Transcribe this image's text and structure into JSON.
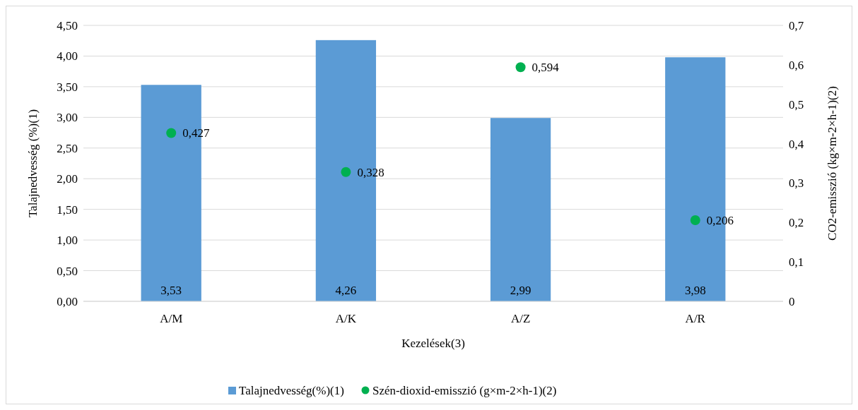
{
  "chart_data": {
    "type": "bar",
    "xlabel": "Kezelések(3)",
    "ylabel": "Talajnedvesség (%)(1)",
    "y2label": "CO2-emisszió (kg×m-2×h-1)(2)",
    "categories": [
      "A/M",
      "A/K",
      "A/Z",
      "A/R"
    ],
    "series": [
      {
        "name": "Talajnedvesség(%)(1)",
        "color": "#5b9bd5",
        "values": [
          3.53,
          4.26,
          2.99,
          3.98
        ],
        "value_labels": [
          "3,53",
          "4,26",
          "2,99",
          "3,98"
        ]
      },
      {
        "name": "Szén-dioxid-emisszió (g×m-2×h-1)(2)",
        "type": "scatter",
        "axis": "y2",
        "color": "#00b050",
        "marker": "circle",
        "values": [
          0.427,
          0.328,
          0.594,
          0.206
        ],
        "value_labels": [
          "0,427",
          "0,328",
          "0,594",
          "0,206"
        ]
      }
    ],
    "ylim": [
      0,
      4.5
    ],
    "yticks": [
      {
        "value": 0,
        "label": "0,00"
      },
      {
        "value": 0.5,
        "label": "0,50"
      },
      {
        "value": 1,
        "label": "1,00"
      },
      {
        "value": 1.5,
        "label": "1,50"
      },
      {
        "value": 2,
        "label": "2,00"
      },
      {
        "value": 2.5,
        "label": "2,50"
      },
      {
        "value": 3,
        "label": "3,00"
      },
      {
        "value": 3.5,
        "label": "3,50"
      },
      {
        "value": 4,
        "label": "4,00"
      },
      {
        "value": 4.5,
        "label": "4,50"
      }
    ],
    "y2lim": [
      0,
      0.7
    ],
    "y2ticks": [
      0,
      {
        "value": 0.1,
        "label": "0,1"
      },
      {
        "value": 0.2,
        "label": "0,2"
      },
      {
        "value": 0.3,
        "label": "0,3"
      },
      {
        "value": 0.4,
        "label": "0,4"
      },
      {
        "value": 0.5,
        "label": "0,5"
      },
      {
        "value": 0.6,
        "label": "0,6"
      },
      {
        "value": 0.7,
        "label": "0,7"
      }
    ],
    "grid": "y",
    "legend": "bottom"
  }
}
